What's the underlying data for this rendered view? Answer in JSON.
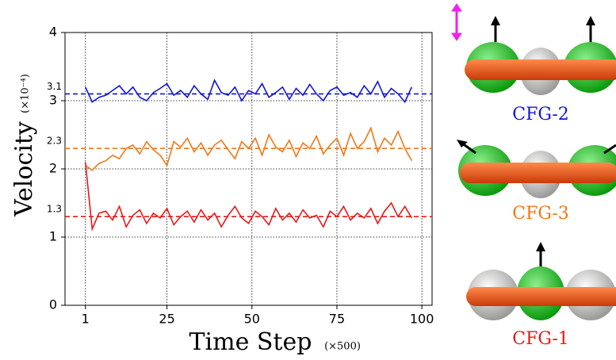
{
  "chart_data": {
    "type": "line",
    "ylabel": "Velocity",
    "ylabel_unit": "(×10⁻⁴)",
    "xlabel": "Time  Step",
    "xlabel_unit": "(×500)",
    "xlim": [
      -5,
      103
    ],
    "xticks": [
      1,
      25,
      50,
      75,
      100
    ],
    "ylim": [
      0,
      4
    ],
    "yticks": [
      0,
      1,
      2,
      3,
      4
    ],
    "grid": true,
    "x": [
      1,
      3,
      5,
      7,
      9,
      11,
      13,
      15,
      17,
      19,
      21,
      23,
      25,
      27,
      29,
      31,
      33,
      35,
      37,
      39,
      41,
      43,
      45,
      47,
      49,
      51,
      53,
      55,
      57,
      59,
      61,
      63,
      65,
      67,
      69,
      71,
      73,
      75,
      77,
      79,
      81,
      83,
      85,
      87,
      89,
      91,
      93,
      95,
      97
    ],
    "series": [
      {
        "name": "CFG-2",
        "color": "#1515d8",
        "values": [
          3.2,
          2.98,
          3.05,
          3.08,
          3.15,
          3.22,
          3.1,
          3.2,
          3.05,
          3.0,
          3.12,
          3.18,
          3.25,
          3.08,
          3.15,
          3.05,
          3.22,
          3.1,
          3.02,
          3.3,
          3.12,
          3.08,
          3.2,
          3.0,
          3.15,
          3.1,
          3.25,
          3.05,
          3.12,
          3.2,
          3.02,
          3.18,
          3.08,
          3.24,
          3.1,
          3.0,
          3.15,
          3.2,
          3.08,
          3.12,
          3.05,
          3.22,
          3.1,
          3.28,
          3.05,
          3.18,
          3.1,
          2.98,
          3.2
        ]
      },
      {
        "name": "CFG-3",
        "color": "#f07818",
        "values": [
          2.05,
          1.98,
          2.08,
          2.12,
          2.2,
          2.15,
          2.3,
          2.35,
          2.22,
          2.4,
          2.28,
          2.2,
          2.05,
          2.4,
          2.32,
          2.45,
          2.25,
          2.38,
          2.2,
          2.35,
          2.42,
          2.28,
          2.15,
          2.4,
          2.3,
          2.45,
          2.2,
          2.5,
          2.32,
          2.25,
          2.42,
          2.18,
          2.38,
          2.3,
          2.48,
          2.22,
          2.35,
          2.45,
          2.2,
          2.52,
          2.3,
          2.4,
          2.6,
          2.25,
          2.45,
          2.35,
          2.55,
          2.3,
          2.12
        ]
      },
      {
        "name": "CFG-1",
        "color": "#e81818",
        "values": [
          2.1,
          1.12,
          1.35,
          1.38,
          1.25,
          1.45,
          1.15,
          1.32,
          1.4,
          1.2,
          1.35,
          1.28,
          1.42,
          1.18,
          1.3,
          1.38,
          1.22,
          1.4,
          1.25,
          1.35,
          1.15,
          1.32,
          1.45,
          1.28,
          1.2,
          1.38,
          1.3,
          1.18,
          1.42,
          1.25,
          1.35,
          1.22,
          1.4,
          1.28,
          1.32,
          1.15,
          1.38,
          1.3,
          1.45,
          1.25,
          1.35,
          1.28,
          1.42,
          1.2,
          1.38,
          1.5,
          1.3,
          1.45,
          1.28
        ]
      }
    ],
    "reference_lines": [
      {
        "value": 3.1,
        "color": "#1515d8"
      },
      {
        "value": 2.3,
        "color": "#f07818"
      },
      {
        "value": 1.3,
        "color": "#e81818"
      }
    ]
  },
  "panels": [
    {
      "label": "CFG-2",
      "color": "#1515d8"
    },
    {
      "label": "CFG-3",
      "color": "#f07818"
    },
    {
      "label": "CFG-1",
      "color": "#e81818"
    }
  ]
}
